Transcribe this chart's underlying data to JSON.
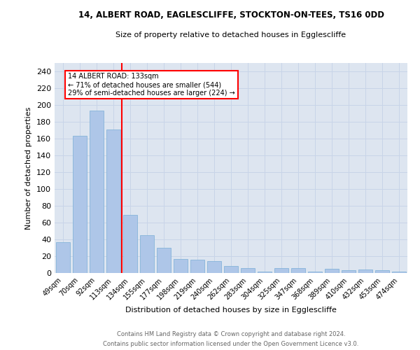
{
  "title_line1": "14, ALBERT ROAD, EAGLESCLIFFE, STOCKTON-ON-TEES, TS16 0DD",
  "title_line2": "Size of property relative to detached houses in Egglescliffe",
  "xlabel": "Distribution of detached houses by size in Egglescliffe",
  "ylabel": "Number of detached properties",
  "categories": [
    "49sqm",
    "70sqm",
    "92sqm",
    "113sqm",
    "134sqm",
    "155sqm",
    "177sqm",
    "198sqm",
    "219sqm",
    "240sqm",
    "262sqm",
    "283sqm",
    "304sqm",
    "325sqm",
    "347sqm",
    "368sqm",
    "389sqm",
    "410sqm",
    "432sqm",
    "453sqm",
    "474sqm"
  ],
  "values": [
    37,
    163,
    193,
    171,
    69,
    45,
    30,
    17,
    16,
    14,
    8,
    6,
    2,
    6,
    6,
    2,
    5,
    3,
    4,
    3,
    2
  ],
  "bar_color": "#aec6e8",
  "bar_edge_color": "#7aaed6",
  "annotation_line1": "14 ALBERT ROAD: 133sqm",
  "annotation_line2": "← 71% of detached houses are smaller (544)",
  "annotation_line3": "29% of semi-detached houses are larger (224) →",
  "vline_color": "red",
  "ylim": [
    0,
    250
  ],
  "yticks": [
    0,
    20,
    40,
    60,
    80,
    100,
    120,
    140,
    160,
    180,
    200,
    220,
    240
  ],
  "grid_color": "#c8d4e8",
  "background_color": "#dde5f0",
  "footer_line1": "Contains HM Land Registry data © Crown copyright and database right 2024.",
  "footer_line2": "Contains public sector information licensed under the Open Government Licence v3.0."
}
